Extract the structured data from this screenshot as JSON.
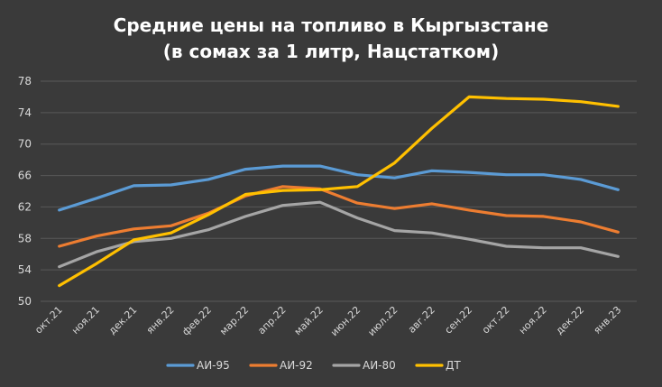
{
  "chart_data": {
    "type": "line",
    "title_lines": [
      "Средние цены на топливо в Кыргызстане",
      "(в сомах за 1 литр, Нацстатком)"
    ],
    "categories": [
      "окт.21",
      "ноя.21",
      "дек.21",
      "янв.22",
      "фев.22",
      "мар.22",
      "апр.22",
      "май.22",
      "июн.22",
      "июл.22",
      "авг.22",
      "сен.22",
      "окт.22",
      "ноя.22",
      "дек.22",
      "янв.23"
    ],
    "ylim": [
      50,
      78
    ],
    "yticks": [
      50,
      54,
      58,
      62,
      66,
      70,
      74,
      78
    ],
    "grid": true,
    "legend_position": "bottom",
    "series": [
      {
        "name": "АИ-95",
        "color": "#5b9bd5",
        "values": [
          61.6,
          63.1,
          64.7,
          64.8,
          65.5,
          66.8,
          67.2,
          67.2,
          66.1,
          65.7,
          66.6,
          66.4,
          66.1,
          66.1,
          65.5,
          64.2
        ]
      },
      {
        "name": "АИ-92",
        "color": "#ed7d31",
        "values": [
          57.0,
          58.3,
          59.2,
          59.6,
          61.2,
          63.4,
          64.6,
          64.3,
          62.5,
          61.8,
          62.4,
          61.6,
          60.9,
          60.8,
          60.1,
          58.8
        ]
      },
      {
        "name": "АИ-80",
        "color": "#a5a5a5",
        "values": [
          54.4,
          56.3,
          57.6,
          58.0,
          59.1,
          60.8,
          62.2,
          62.6,
          60.6,
          59.0,
          58.7,
          57.9,
          57.0,
          56.8,
          56.8,
          55.7
        ]
      },
      {
        "name": "ДТ",
        "color": "#ffc000",
        "values": [
          52.0,
          54.8,
          57.8,
          58.7,
          61.0,
          63.6,
          64.1,
          64.2,
          64.6,
          67.6,
          72.0,
          76.0,
          75.8,
          75.7,
          75.4,
          74.8
        ]
      }
    ]
  }
}
